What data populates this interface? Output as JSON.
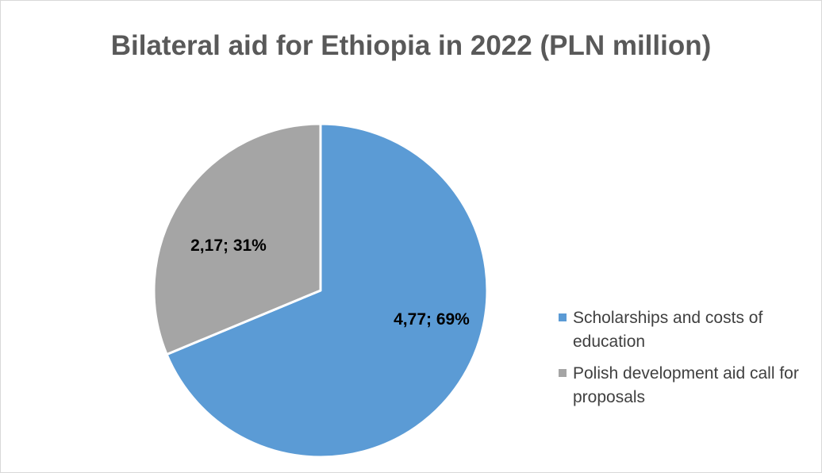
{
  "chart_data": {
    "type": "pie",
    "title": "Bilateral aid for Ethiopia in 2022 (PLN million)",
    "slices": [
      {
        "label": "Scholarships and costs of education",
        "value": 4.77,
        "percent": 69,
        "data_label": "4,77; 69%",
        "color": "#5b9bd5"
      },
      {
        "label": "Polish development aid call for proposals",
        "value": 2.17,
        "percent": 31,
        "data_label": "2,17; 31%",
        "color": "#a5a5a5"
      }
    ],
    "legend_position": "right"
  }
}
